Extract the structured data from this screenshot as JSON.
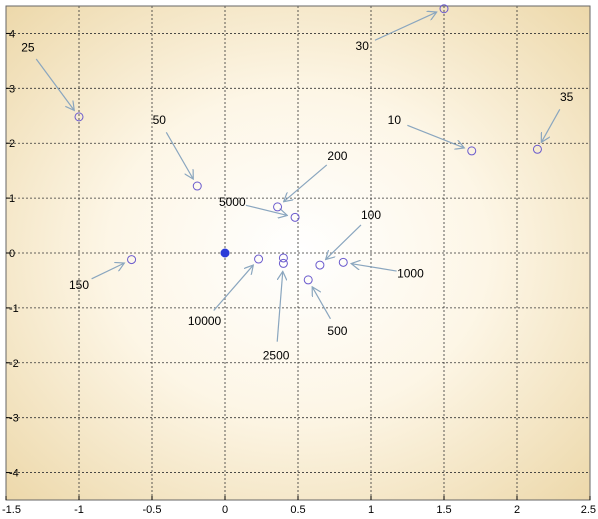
{
  "chart_data": {
    "type": "scatter",
    "title": "",
    "xlabel": "",
    "ylabel": "",
    "xlim": [
      -1.5,
      2.5
    ],
    "ylim": [
      -4.5,
      4.5
    ],
    "x_ticks": [
      "-1.5",
      "-1",
      "-0.5",
      "0",
      "0.5",
      "1",
      "1.5",
      "2",
      "2.5"
    ],
    "y_ticks": [
      "4",
      "3",
      "2",
      "1",
      "0",
      "-1",
      "-2",
      "-3",
      "-4"
    ],
    "grid": true,
    "background": "radial gradient, white center to tan edges",
    "colors": {
      "marker": "#6a5acd",
      "highlight": "#2b3bd8",
      "arrow": "#8aa6bf",
      "edge": "#ecd7a8"
    },
    "origin_point": {
      "x": 0,
      "y": 0,
      "filled": true
    },
    "points": [
      {
        "label": "10",
        "x": 1.69,
        "y": 1.86
      },
      {
        "label": "25",
        "x": -1.0,
        "y": 2.48
      },
      {
        "label": "30",
        "x": 1.5,
        "y": 4.45
      },
      {
        "label": "35",
        "x": 2.14,
        "y": 1.89
      },
      {
        "label": "50",
        "x": -0.19,
        "y": 1.22
      },
      {
        "label": "100",
        "x": 0.65,
        "y": -0.22
      },
      {
        "label": "150",
        "x": -0.64,
        "y": -0.12
      },
      {
        "label": "200",
        "x": 0.36,
        "y": 0.84
      },
      {
        "label": "500",
        "x": 0.57,
        "y": -0.49
      },
      {
        "label": "1000",
        "x": 0.81,
        "y": -0.17
      },
      {
        "label": "2500",
        "x": 0.4,
        "y": -0.19
      },
      {
        "label": "5000",
        "x": 0.48,
        "y": 0.65
      },
      {
        "label": "10000",
        "x": 0.23,
        "y": -0.11
      }
    ],
    "extra_points": [
      {
        "x": 0.4,
        "y": -0.09
      }
    ],
    "annotations": [
      {
        "text": "10",
        "tx": 1.16,
        "ty": 2.42
      },
      {
        "text": "25",
        "tx": -1.35,
        "ty": 3.74
      },
      {
        "text": "30",
        "tx": 0.94,
        "ty": 3.77
      },
      {
        "text": "35",
        "tx": 2.34,
        "ty": 2.84
      },
      {
        "text": "50",
        "tx": -0.45,
        "ty": 2.42
      },
      {
        "text": "100",
        "tx": 1.0,
        "ty": 0.69
      },
      {
        "text": "150",
        "tx": -1.0,
        "ty": -0.58
      },
      {
        "text": "200",
        "tx": 0.77,
        "ty": 1.77
      },
      {
        "text": "500",
        "tx": 0.77,
        "ty": -1.42
      },
      {
        "text": "1000",
        "tx": 1.27,
        "ty": -0.37
      },
      {
        "text": "2500",
        "tx": 0.35,
        "ty": -1.87
      },
      {
        "text": "5000",
        "tx": 0.05,
        "ty": 0.93
      },
      {
        "text": "10000",
        "tx": -0.14,
        "ty": -1.24
      }
    ]
  }
}
